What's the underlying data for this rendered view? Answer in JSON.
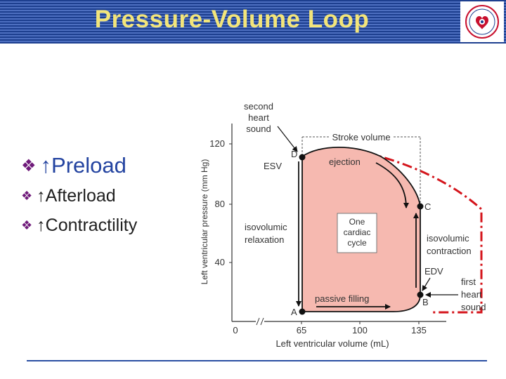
{
  "header": {
    "title": "Pressure-Volume Loop"
  },
  "logo": {
    "text": "KOREAN SOCIETY OF ECHOCARDIOGRAPHY",
    "colors": [
      "#c8102e",
      "#1d3f8f"
    ]
  },
  "bullets": [
    {
      "icon": "diamond-bullet-icon",
      "text": "↑Preload"
    },
    {
      "icon": "diamond-bullet-icon",
      "text": "↑Afterload"
    },
    {
      "icon": "diamond-bullet-icon",
      "text": "↑Contractility"
    }
  ],
  "diagram": {
    "ylabel": "Left ventricular pressure (mm Hg)",
    "xlabel": "Left ventricular volume (mL)",
    "yticks": [
      "120",
      "80",
      "40"
    ],
    "xticks": [
      "0",
      "65",
      "100",
      "135"
    ],
    "points": {
      "A": "A",
      "B": "B",
      "C": "C",
      "D": "D"
    },
    "labels": {
      "second_heart_sound": [
        "second",
        "heart",
        "sound"
      ],
      "first_heart_sound": [
        "first",
        "heart",
        "sound"
      ],
      "stroke_volume": "Stroke volume",
      "ejection": "ejection",
      "esv": "ESV",
      "edv": "EDV",
      "one_cardiac_cycle": [
        "One",
        "cardiac",
        "cycle"
      ],
      "isovolumic_relaxation": [
        "isovolumic",
        "relaxation"
      ],
      "isovolumic_contraction": [
        "isovolumic",
        "contraction"
      ],
      "passive_filling": "passive filling"
    },
    "colors": {
      "loop_fill": "#f6b9b0",
      "preload_loop": "#d4141b",
      "text": "#333333"
    }
  }
}
